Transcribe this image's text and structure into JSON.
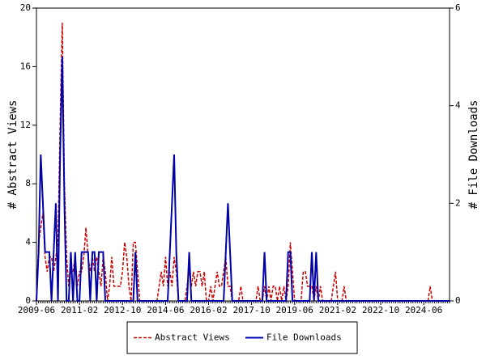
{
  "chart_data": {
    "type": "line",
    "y_label": "# Abstract Views",
    "y2_label": "# File Downloads",
    "categories": [
      "2009-06",
      null,
      null,
      null,
      null,
      null,
      null,
      null,
      null,
      null,
      null,
      null,
      null,
      null,
      null,
      null,
      null,
      null,
      null,
      null,
      "2011-02",
      null,
      null,
      null,
      null,
      null,
      null,
      null,
      null,
      null,
      null,
      null,
      null,
      null,
      null,
      null,
      null,
      null,
      null,
      null,
      "2012-10",
      null,
      null,
      null,
      null,
      null,
      null,
      null,
      null,
      null,
      null,
      null,
      null,
      null,
      null,
      null,
      null,
      null,
      null,
      null,
      "2014-06",
      null,
      null,
      null,
      null,
      null,
      null,
      null,
      null,
      null,
      null,
      null,
      null,
      null,
      null,
      null,
      null,
      null,
      null,
      null,
      "2016-02",
      null,
      null,
      null,
      null,
      null,
      null,
      null,
      null,
      null,
      null,
      null,
      null,
      null,
      null,
      null,
      null,
      null,
      null,
      null,
      "2017-10",
      null,
      null,
      null,
      null,
      null,
      null,
      null,
      null,
      null,
      null,
      null,
      null,
      null,
      null,
      null,
      null,
      null,
      null,
      null,
      "2019-06",
      null,
      null,
      null,
      null,
      null,
      null,
      null,
      null,
      null,
      null,
      null,
      null,
      null,
      null,
      null,
      null,
      null,
      null,
      null,
      "2021-02",
      null,
      null,
      null,
      null,
      null,
      null,
      null,
      null,
      null,
      null,
      null,
      null,
      null,
      null,
      null,
      null,
      null,
      null,
      null,
      "2022-10",
      null,
      null,
      null,
      null,
      null,
      null,
      null,
      null,
      null,
      null,
      null,
      null,
      null,
      null,
      null,
      null,
      null,
      null,
      null,
      "2024-06",
      null,
      null,
      null,
      null,
      null,
      null,
      null,
      null,
      null,
      null,
      null,
      null
    ],
    "series": [
      {
        "name": "Abstract Views",
        "color": "#cc0000",
        "dash": true,
        "values": [
          0,
          4,
          5,
          6,
          3,
          2,
          3,
          3,
          2,
          3,
          4,
          12,
          19,
          8,
          3,
          1,
          2,
          2,
          3,
          1,
          2,
          2,
          3,
          5,
          3,
          2,
          3,
          2,
          3,
          2,
          1,
          3,
          2,
          0,
          1,
          3,
          1,
          1,
          1,
          1,
          2,
          4,
          3,
          1,
          0,
          4,
          4,
          2,
          0,
          0,
          0,
          0,
          0,
          0,
          0,
          0,
          0,
          1,
          2,
          1,
          3,
          1,
          2,
          1,
          3,
          2,
          0,
          0,
          0,
          0,
          1,
          2,
          1,
          2,
          1,
          2,
          2,
          1,
          2,
          0,
          0,
          1,
          0,
          1,
          2,
          1,
          1,
          2,
          3,
          1,
          1,
          0,
          0,
          0,
          0,
          1,
          0,
          0,
          0,
          0,
          0,
          0,
          0,
          1,
          0,
          0,
          1,
          0,
          1,
          0,
          1,
          1,
          0,
          1,
          0,
          1,
          0,
          1,
          4,
          2,
          0,
          0,
          0,
          0,
          2,
          2,
          1,
          1,
          1,
          0,
          1,
          0,
          1,
          0,
          0,
          0,
          0,
          0,
          1,
          2,
          0,
          0,
          0,
          1,
          0,
          0,
          0,
          0,
          0,
          0,
          0,
          0,
          0,
          0,
          0,
          0,
          0,
          0,
          0,
          0,
          0,
          0,
          0,
          0,
          0,
          0,
          0,
          0,
          0,
          0,
          0,
          0,
          0,
          0,
          0,
          0,
          0,
          0,
          0,
          0,
          0,
          0,
          0,
          1,
          0,
          0,
          0,
          0,
          0,
          0,
          0,
          0,
          0
        ]
      },
      {
        "name": "File Downloads",
        "color": "#0000aa",
        "axis": "y2",
        "values": [
          0,
          1,
          3,
          2,
          1,
          1,
          1,
          0,
          1,
          2,
          0,
          3,
          5,
          2,
          0,
          0,
          1,
          0,
          1,
          0,
          0,
          1,
          1,
          1,
          1,
          0,
          1,
          1,
          0,
          1,
          1,
          1,
          0,
          0,
          0,
          0,
          0,
          0,
          0,
          0,
          0,
          0,
          0,
          0,
          0,
          0,
          1,
          0,
          0,
          0,
          0,
          0,
          0,
          0,
          0,
          0,
          0,
          0,
          0,
          0,
          0,
          0,
          1,
          2,
          3,
          1,
          0,
          0,
          0,
          0,
          0,
          1,
          0,
          0,
          0,
          0,
          0,
          0,
          0,
          0,
          0,
          0,
          0,
          0,
          0,
          0,
          0,
          0,
          1,
          2,
          1,
          0,
          0,
          0,
          0,
          0,
          0,
          0,
          0,
          0,
          0,
          0,
          0,
          0,
          0,
          0,
          1,
          0,
          0,
          0,
          0,
          0,
          0,
          0,
          0,
          0,
          0,
          1,
          1,
          0,
          0,
          0,
          0,
          0,
          0,
          0,
          0,
          0,
          1,
          0,
          1,
          0,
          0,
          0,
          0,
          0,
          0,
          0,
          0,
          0,
          0,
          0,
          0,
          0,
          0,
          0,
          0,
          0,
          0,
          0,
          0,
          0,
          0,
          0,
          0,
          0,
          0,
          0,
          0,
          0,
          0,
          0,
          0,
          0,
          0,
          0,
          0,
          0,
          0,
          0,
          0,
          0,
          0,
          0,
          0,
          0,
          0,
          0,
          0,
          0,
          0,
          0,
          0,
          0,
          0,
          0,
          0,
          0,
          0,
          0,
          0,
          0,
          0
        ]
      }
    ],
    "ylim": [
      0,
      20
    ],
    "yticks": [
      0,
      4,
      8,
      12,
      16,
      20
    ],
    "y2lim": [
      0,
      6
    ],
    "y2ticks": [
      0,
      2,
      4,
      6
    ],
    "legend": "bottom"
  }
}
